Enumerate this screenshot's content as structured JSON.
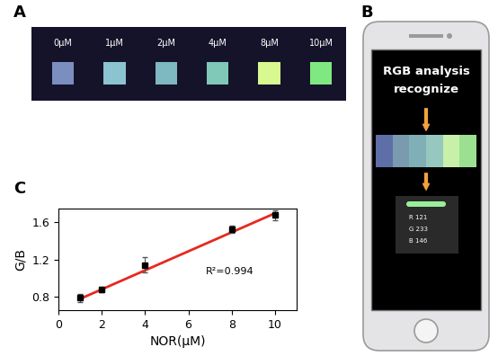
{
  "panel_labels": [
    "A",
    "B",
    "C"
  ],
  "photo": {
    "labels": [
      "0μM",
      "1μM",
      "2μM",
      "4μM",
      "8μM",
      "10μM"
    ],
    "colors": [
      "#7b8ec0",
      "#8cc3d0",
      "#7eb8c0",
      "#80c8b8",
      "#d8f890",
      "#80e880"
    ]
  },
  "phone": {
    "lines": [
      "RGB analysis",
      "recognize"
    ],
    "colors": [
      "#5e6fa8",
      "#7a9ab0",
      "#7fb0b8",
      "#96c8c0",
      "#c8f0a8",
      "#9ae090"
    ],
    "readout": [
      "R 121",
      "G 233",
      "B 146"
    ]
  },
  "chart_data": {
    "type": "scatter",
    "xlabel": "NOR(μM)",
    "ylabel": "G/B",
    "annotations": [
      "R²=0.994"
    ],
    "series": [
      {
        "type": "scatter",
        "x": [
          1,
          2,
          4,
          8,
          10
        ],
        "values": [
          0.79,
          0.88,
          1.14,
          1.52,
          1.67
        ],
        "errors": [
          0.04,
          0.03,
          0.08,
          0.04,
          0.05
        ],
        "color": "#000000",
        "marker": "square"
      },
      {
        "type": "line",
        "x": [
          1,
          10
        ],
        "values": [
          0.78,
          1.69
        ],
        "color": "#e8281e",
        "line_style": "solid"
      }
    ],
    "xlim": [
      0,
      11
    ],
    "ylim": [
      0.66,
      1.74
    ],
    "xticks": [
      0,
      2,
      4,
      6,
      8,
      10
    ],
    "yticks": [
      0.8,
      1.2,
      1.6
    ]
  }
}
